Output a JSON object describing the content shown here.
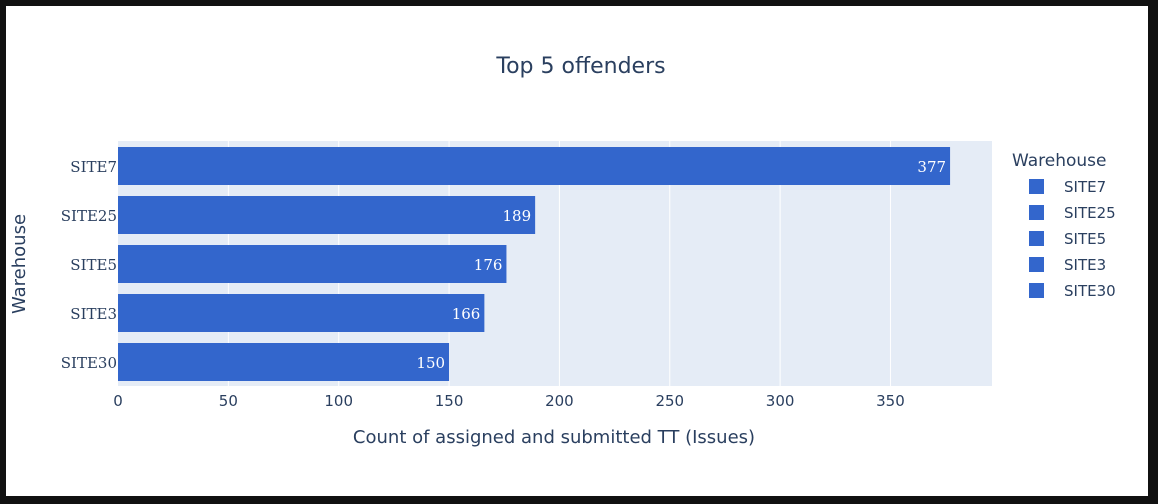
{
  "chart_data": {
    "type": "bar",
    "orientation": "horizontal",
    "title": "Top 5 offenders",
    "xlabel": "Count of assigned and submitted TT (Issues)",
    "ylabel": "Warehouse",
    "categories": [
      "SITE7",
      "SITE25",
      "SITE5",
      "SITE3",
      "SITE30"
    ],
    "values": [
      377,
      189,
      176,
      166,
      150
    ],
    "data_labels": [
      "377",
      "189",
      "176",
      "166",
      "150"
    ],
    "xlim": [
      0,
      396
    ],
    "xticks": [
      0,
      50,
      100,
      150,
      200,
      250,
      300,
      350
    ],
    "grid": true,
    "legend": {
      "title": "Warehouse",
      "placement": "right",
      "entries": [
        "SITE7",
        "SITE25",
        "SITE5",
        "SITE3",
        "SITE30"
      ]
    },
    "colors": {
      "bar": "#3366cc",
      "plot_background": "#e5ecf6",
      "text": "#2a3f5f",
      "gridline": "#ffffff"
    }
  }
}
